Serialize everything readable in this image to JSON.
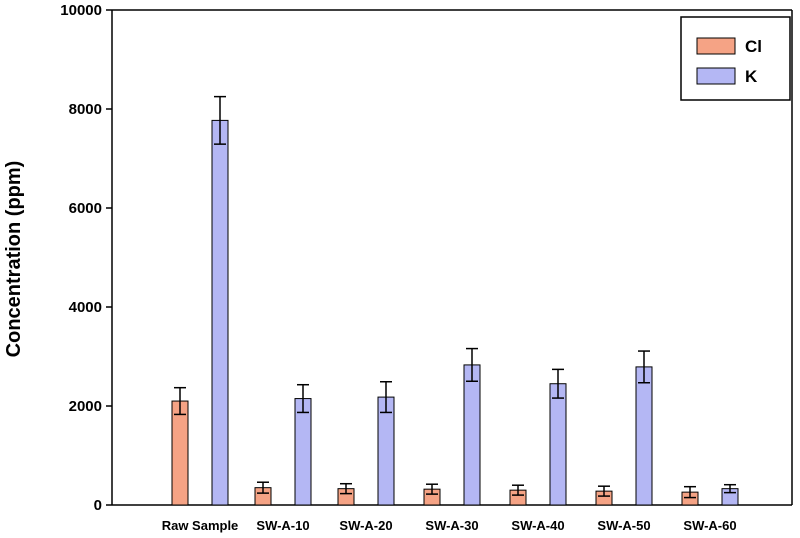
{
  "chart_data": {
    "type": "bar",
    "title": "",
    "xlabel": "",
    "ylabel": "Concentration (ppm)",
    "ylim": [
      0,
      10000
    ],
    "yticks": [
      0,
      2000,
      4000,
      6000,
      8000,
      10000
    ],
    "categories": [
      "Raw Sample",
      "SW-A-10",
      "SW-A-20",
      "SW-A-30",
      "SW-A-40",
      "SW-A-50",
      "SW-A-60"
    ],
    "series": [
      {
        "name": "Cl",
        "color": "#f5a385",
        "values": [
          2100,
          350,
          330,
          320,
          300,
          280,
          260
        ],
        "errors": [
          270,
          110,
          100,
          100,
          100,
          100,
          110
        ]
      },
      {
        "name": "K",
        "color": "#b4b7f4",
        "values": [
          7770,
          2150,
          2180,
          2830,
          2450,
          2790,
          330
        ],
        "errors": [
          480,
          280,
          310,
          330,
          290,
          320,
          80
        ]
      }
    ],
    "legend": {
      "position": "top-right"
    },
    "grid": false
  }
}
